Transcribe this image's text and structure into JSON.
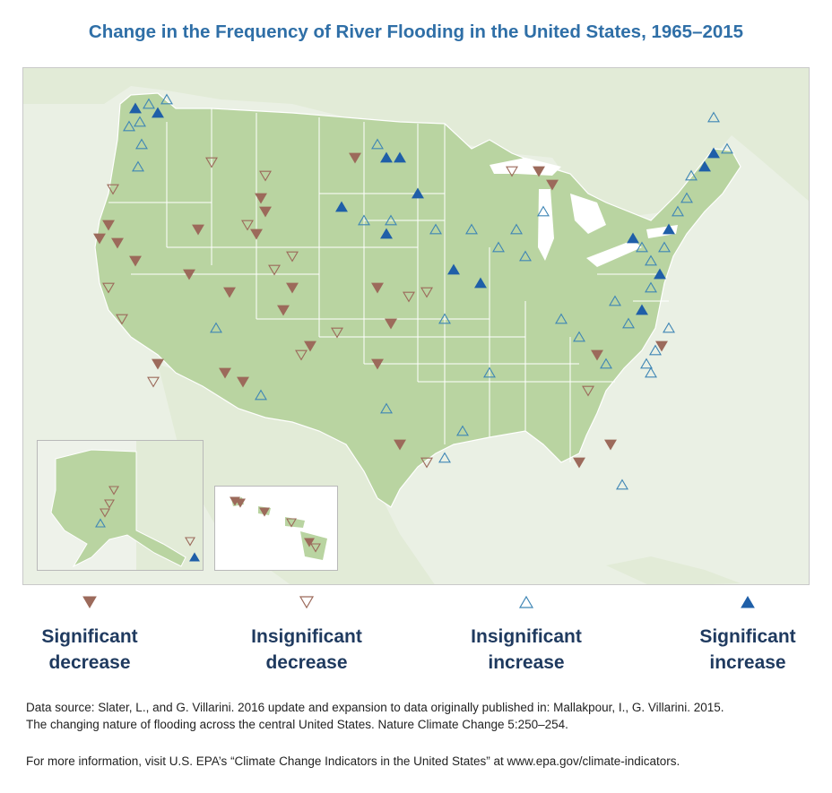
{
  "title": "Change in the Frequency of River Flooding in the United States, 1965–2015",
  "legend": [
    {
      "key": "sig_dec",
      "label": "Significant decrease",
      "line1": "Significant",
      "line2": "decrease",
      "color": "#9c6a5b",
      "filled": true,
      "direction": "down"
    },
    {
      "key": "insig_dec",
      "label": "Insignificant decrease",
      "line1": "Insignificant",
      "line2": "decrease",
      "color": "#9c6a5b",
      "filled": false,
      "direction": "down"
    },
    {
      "key": "insig_inc",
      "label": "Insignificant increase",
      "line1": "Insignificant",
      "line2": "increase",
      "color": "#3f86b5",
      "filled": false,
      "direction": "up"
    },
    {
      "key": "sig_inc",
      "label": "Significant increase",
      "line1": "Significant",
      "line2": "increase",
      "color": "#1f5fa8",
      "filled": true,
      "direction": "up"
    }
  ],
  "colors": {
    "land_us": "#b9d4a1",
    "land_other": "#e2ebd7",
    "water": "#ffffff",
    "border": "#ffffff",
    "title": "#2f6fa7",
    "legend_text": "#1f3a5f"
  },
  "source": {
    "line1": "Data source: Slater, L., and G. Villarini. 2016 update and expansion to data originally published in: Mallakpour, I., G. Villarini. 2015.",
    "line2": "The changing nature of flooding across the central United States. Nature Climate Change 5:250–254."
  },
  "more_info": "For more information, visit U.S. EPA’s “Climate Change Indicators in the United States” at www.epa.gov/climate-indicators."
}
